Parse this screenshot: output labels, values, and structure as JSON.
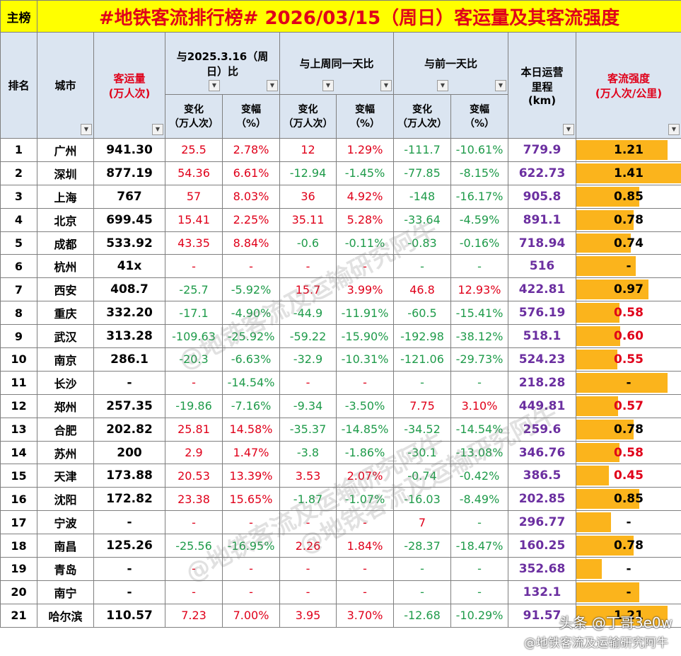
{
  "header": {
    "tag": "主榜",
    "title": "#地铁客流排行榜# 2026/03/15（周日）客运量及其客流强度"
  },
  "columns": {
    "rank": "排名",
    "city": "城市",
    "volume_line1": "客运量",
    "volume_line2": "(万人次)",
    "group_yoy_line1": "与2025.3.16（周",
    "group_yoy_line2": "日）比",
    "group_wow": "与上周同一天比",
    "group_dod": "与前一天比",
    "mileage_line1": "本日运营",
    "mileage_line2": "里程",
    "mileage_line3": "(km)",
    "intensity_line1": "客流强度",
    "intensity_line2": "(万人次/公里)",
    "change_line1": "变化",
    "change_line2": "（万人次）",
    "pct_line1": "变幅",
    "pct_line2": "（%）"
  },
  "colors": {
    "title_bg": "#ffff00",
    "header_bg": "#dbe5f1",
    "up": "#e0001a",
    "down": "#1f9b4a",
    "mileage": "#6b2fa0",
    "bar": "#fbb41c"
  },
  "rows": [
    {
      "rank": "1",
      "city": "广州",
      "volume": "941.30",
      "c1": "25.5",
      "p1": "2.78%",
      "c2": "12",
      "p2": "1.29%",
      "c3": "-111.7",
      "p3": "-10.61%",
      "mileage": "779.9",
      "intensity": "1.21",
      "bar": 0.87
    },
    {
      "rank": "2",
      "city": "深圳",
      "volume": "877.19",
      "c1": "54.36",
      "p1": "6.61%",
      "c2": "-12.94",
      "p2": "-1.45%",
      "c3": "-77.85",
      "p3": "-8.15%",
      "mileage": "622.73",
      "intensity": "1.41",
      "bar": 1.0
    },
    {
      "rank": "3",
      "city": "上海",
      "volume": "767",
      "c1": "57",
      "p1": "8.03%",
      "c2": "36",
      "p2": "4.92%",
      "c3": "-148",
      "p3": "-16.17%",
      "mileage": "905.8",
      "intensity": "0.85",
      "bar": 0.6
    },
    {
      "rank": "4",
      "city": "北京",
      "volume": "699.45",
      "c1": "15.41",
      "p1": "2.25%",
      "c2": "35.11",
      "p2": "5.28%",
      "c3": "-33.64",
      "p3": "-4.59%",
      "mileage": "891.1",
      "intensity": "0.78",
      "bar": 0.55
    },
    {
      "rank": "5",
      "city": "成都",
      "volume": "533.92",
      "c1": "43.35",
      "p1": "8.84%",
      "c2": "-0.6",
      "p2": "-0.11%",
      "c3": "-0.83",
      "p3": "-0.16%",
      "mileage": "718.94",
      "intensity": "0.74",
      "bar": 0.52
    },
    {
      "rank": "6",
      "city": "杭州",
      "volume": "41x",
      "c1": "-",
      "p1": "-",
      "c2": "-",
      "p2": "-",
      "c3": "-",
      "p3": "-",
      "mileage": "516",
      "intensity": "-",
      "bar": 0.57
    },
    {
      "rank": "7",
      "city": "西安",
      "volume": "408.7",
      "c1": "-25.7",
      "p1": "-5.92%",
      "c2": "15.7",
      "p2": "3.99%",
      "c3": "46.8",
      "p3": "12.93%",
      "mileage": "422.81",
      "intensity": "0.97",
      "bar": 0.69
    },
    {
      "rank": "8",
      "city": "重庆",
      "volume": "332.20",
      "c1": "-17.1",
      "p1": "-4.90%",
      "c2": "-44.9",
      "p2": "-11.91%",
      "c3": "-60.5",
      "p3": "-15.41%",
      "mileage": "576.19",
      "intensity": "0.58",
      "bar": 0.41
    },
    {
      "rank": "9",
      "city": "武汉",
      "volume": "313.28",
      "c1": "-109.63",
      "p1": "-25.92%",
      "c2": "-59.22",
      "p2": "-15.90%",
      "c3": "-192.98",
      "p3": "-38.12%",
      "mileage": "518.1",
      "intensity": "0.60",
      "bar": 0.42
    },
    {
      "rank": "10",
      "city": "南京",
      "volume": "286.1",
      "c1": "-20.3",
      "p1": "-6.63%",
      "c2": "-32.9",
      "p2": "-10.31%",
      "c3": "-121.06",
      "p3": "-29.73%",
      "mileage": "524.23",
      "intensity": "0.55",
      "bar": 0.39
    },
    {
      "rank": "11",
      "city": "长沙",
      "volume": "-",
      "c1": "-",
      "p1": "-14.54%",
      "c2": "-",
      "p2": "-",
      "c3": "-",
      "p3": "-",
      "mileage": "218.28",
      "intensity": "-",
      "bar": 0.87
    },
    {
      "rank": "12",
      "city": "郑州",
      "volume": "257.35",
      "c1": "-19.86",
      "p1": "-7.16%",
      "c2": "-9.34",
      "p2": "-3.50%",
      "c3": "7.75",
      "p3": "3.10%",
      "mileage": "449.81",
      "intensity": "0.57",
      "bar": 0.4
    },
    {
      "rank": "13",
      "city": "合肥",
      "volume": "202.82",
      "c1": "25.81",
      "p1": "14.58%",
      "c2": "-35.37",
      "p2": "-14.85%",
      "c3": "-34.52",
      "p3": "-14.54%",
      "mileage": "259.6",
      "intensity": "0.78",
      "bar": 0.55
    },
    {
      "rank": "14",
      "city": "苏州",
      "volume": "200",
      "c1": "2.9",
      "p1": "1.47%",
      "c2": "-3.8",
      "p2": "-1.86%",
      "c3": "-30.1",
      "p3": "-13.08%",
      "mileage": "346.76",
      "intensity": "0.58",
      "bar": 0.41
    },
    {
      "rank": "15",
      "city": "天津",
      "volume": "173.88",
      "c1": "20.53",
      "p1": "13.39%",
      "c2": "3.53",
      "p2": "2.07%",
      "c3": "-0.74",
      "p3": "-0.42%",
      "mileage": "386.5",
      "intensity": "0.45",
      "bar": 0.31
    },
    {
      "rank": "16",
      "city": "沈阳",
      "volume": "172.82",
      "c1": "23.38",
      "p1": "15.65%",
      "c2": "-1.87",
      "p2": "-1.07%",
      "c3": "-16.03",
      "p3": "-8.49%",
      "mileage": "202.85",
      "intensity": "0.85",
      "bar": 0.6
    },
    {
      "rank": "17",
      "city": "宁波",
      "volume": "-",
      "c1": "-",
      "p1": "-",
      "c2": "-",
      "p2": "-",
      "c3": "7",
      "p3": "-",
      "mileage": "296.77",
      "intensity": "-",
      "bar": 0.33
    },
    {
      "rank": "18",
      "city": "南昌",
      "volume": "125.26",
      "c1": "-25.56",
      "p1": "-16.95%",
      "c2": "2.26",
      "p2": "1.84%",
      "c3": "-28.37",
      "p3": "-18.47%",
      "mileage": "160.25",
      "intensity": "0.78",
      "bar": 0.55
    },
    {
      "rank": "19",
      "city": "青岛",
      "volume": "-",
      "c1": "-",
      "p1": "-",
      "c2": "-",
      "p2": "-",
      "c3": "-",
      "p3": "-",
      "mileage": "352.68",
      "intensity": "-",
      "bar": 0.24
    },
    {
      "rank": "20",
      "city": "南宁",
      "volume": "-",
      "c1": "-",
      "p1": "-",
      "c2": "-",
      "p2": "-",
      "c3": "-",
      "p3": "-",
      "mileage": "132.1",
      "intensity": "-",
      "bar": 0.6
    },
    {
      "rank": "21",
      "city": "哈尔滨",
      "volume": "110.57",
      "c1": "7.23",
      "p1": "7.00%",
      "c2": "3.95",
      "p2": "3.70%",
      "c3": "-12.68",
      "p3": "-10.29%",
      "mileage": "91.57",
      "intensity": "1.21",
      "bar": 0.87
    }
  ],
  "watermark": "@地铁客流及运输研究阿牛",
  "footer": {
    "line1": "头条 @丁哥3e0w",
    "line2": "@地铁客流及运输研究阿牛"
  }
}
